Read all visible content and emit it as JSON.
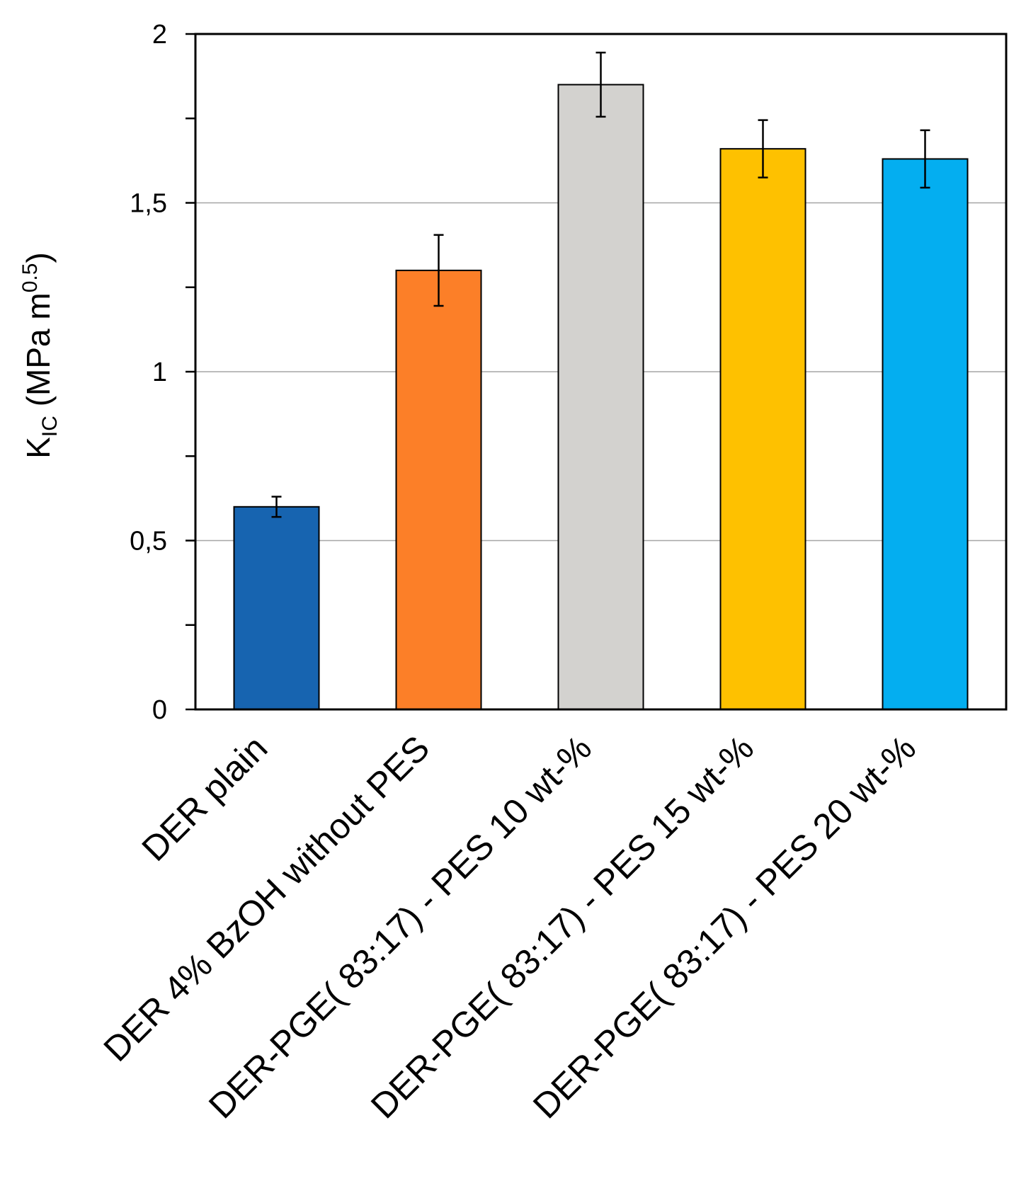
{
  "chart_data": {
    "type": "bar",
    "title": "",
    "xlabel": "",
    "ylabel": {
      "symbol": "K",
      "subscript": "IC",
      "unit_prefix": " (MPa m",
      "superscript": "0.5",
      "unit_suffix": ")"
    },
    "ylim": [
      0,
      2
    ],
    "yticks": [
      0,
      0.5,
      1,
      1.5,
      2
    ],
    "ytick_labels": [
      "0",
      "0,5",
      "1",
      "1,5",
      "2"
    ],
    "gridlines": [
      0.5,
      1,
      1.5
    ],
    "categories": [
      "DER plain",
      "DER 4% BzOH without PES",
      "DER-PGE( 83:17) - PES 10 wt-%",
      "DER-PGE( 83:17) - PES 15 wt-%",
      "DER-PGE( 83:17) - PES 20 wt-%"
    ],
    "values": [
      0.6,
      1.3,
      1.85,
      1.66,
      1.63
    ],
    "errors": [
      0.03,
      0.105,
      0.095,
      0.085,
      0.085
    ],
    "colors": [
      "#1764b0",
      "#fc7f28",
      "#d3d2cf",
      "#fec100",
      "#04aef0"
    ]
  }
}
